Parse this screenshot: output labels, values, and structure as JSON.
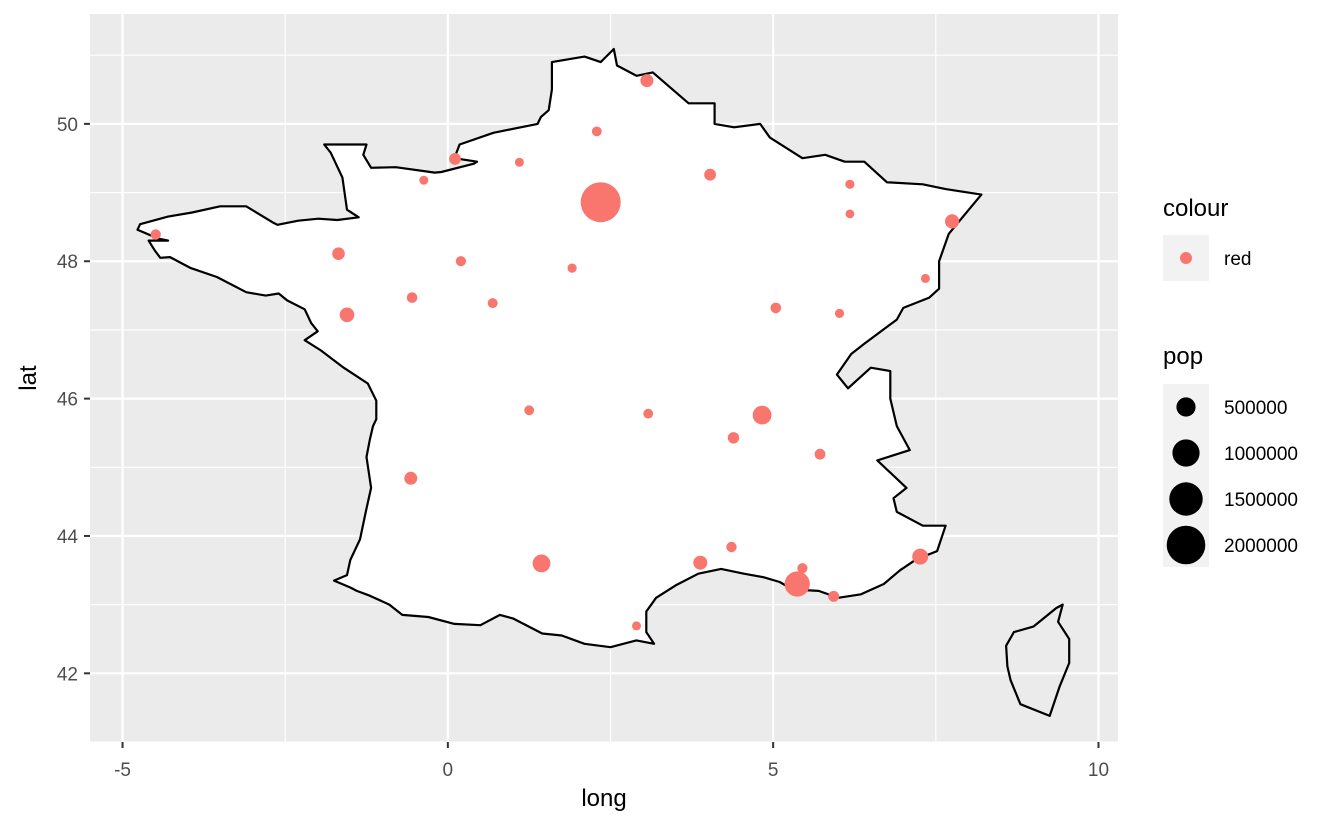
{
  "chart_data": {
    "type": "scatter",
    "subtype": "map",
    "xlabel": "long",
    "ylabel": "lat",
    "xlim": [
      -5.5,
      10.3
    ],
    "ylim": [
      41.0,
      51.6
    ],
    "x_ticks": [
      -5,
      0,
      5,
      10
    ],
    "y_ticks": [
      42,
      44,
      46,
      48,
      50
    ],
    "x_tick_labels": [
      "-5",
      "0",
      "5",
      "10"
    ],
    "y_tick_labels": [
      "42",
      "44",
      "46",
      "48",
      "50"
    ],
    "grid": true,
    "panel_background": "#EBEBEB",
    "country_fill": "#FFFFFF",
    "country_outline": "#000000",
    "point_color": "#F8766D",
    "legend_position": "right",
    "legend": {
      "colour": {
        "title": "colour",
        "items": [
          "red"
        ]
      },
      "size": {
        "title": "pop",
        "items": [
          "500000",
          "1000000",
          "1500000",
          "2000000"
        ],
        "values": [
          500000,
          1000000,
          1500000,
          2000000
        ]
      }
    },
    "points": [
      {
        "long": 2.35,
        "lat": 48.86,
        "pop": 2150000
      },
      {
        "long": 5.37,
        "lat": 43.3,
        "pop": 850000
      },
      {
        "long": 4.83,
        "lat": 45.76,
        "pop": 480000
      },
      {
        "long": 1.44,
        "lat": 43.6,
        "pop": 430000
      },
      {
        "long": 7.26,
        "lat": 43.7,
        "pop": 340000
      },
      {
        "long": -1.55,
        "lat": 47.22,
        "pop": 290000
      },
      {
        "long": 7.75,
        "lat": 48.58,
        "pop": 270000
      },
      {
        "long": 3.88,
        "lat": 43.61,
        "pop": 260000
      },
      {
        "long": -0.57,
        "lat": 44.84,
        "pop": 230000
      },
      {
        "long": 3.06,
        "lat": 50.63,
        "pop": 230000
      },
      {
        "long": -1.68,
        "lat": 48.11,
        "pop": 210000
      },
      {
        "long": 4.03,
        "lat": 49.26,
        "pop": 185000
      },
      {
        "long": 0.11,
        "lat": 49.49,
        "pop": 185000
      },
      {
        "long": 4.39,
        "lat": 45.43,
        "pop": 175000
      },
      {
        "long": 5.93,
        "lat": 43.12,
        "pop": 160000
      },
      {
        "long": 5.72,
        "lat": 45.19,
        "pop": 155000
      },
      {
        "long": 5.04,
        "lat": 47.32,
        "pop": 150000
      },
      {
        "long": -0.55,
        "lat": 47.47,
        "pop": 150000
      },
      {
        "long": -4.49,
        "lat": 48.39,
        "pop": 145000
      },
      {
        "long": 4.36,
        "lat": 43.84,
        "pop": 145000
      },
      {
        "long": 5.45,
        "lat": 43.53,
        "pop": 140000
      },
      {
        "long": 0.2,
        "lat": 48.0,
        "pop": 140000
      },
      {
        "long": 0.69,
        "lat": 47.39,
        "pop": 135000
      },
      {
        "long": 2.29,
        "lat": 49.89,
        "pop": 130000
      },
      {
        "long": 1.25,
        "lat": 45.83,
        "pop": 130000
      },
      {
        "long": 3.08,
        "lat": 45.78,
        "pop": 130000
      },
      {
        "long": 1.91,
        "lat": 47.9,
        "pop": 115000
      },
      {
        "long": 1.1,
        "lat": 49.44,
        "pop": 110000
      },
      {
        "long": 6.18,
        "lat": 49.12,
        "pop": 115000
      },
      {
        "long": 6.02,
        "lat": 47.24,
        "pop": 115000
      },
      {
        "long": -0.37,
        "lat": 49.18,
        "pop": 110000
      },
      {
        "long": 2.9,
        "lat": 42.69,
        "pop": 110000
      },
      {
        "long": 7.34,
        "lat": 47.75,
        "pop": 110000
      },
      {
        "long": 6.18,
        "lat": 48.69,
        "pop": 105000
      }
    ],
    "outlines": {
      "mainland": [
        [
          2.55,
          51.09
        ],
        [
          2.35,
          50.9
        ],
        [
          2.1,
          50.98
        ],
        [
          1.6,
          50.9
        ],
        [
          1.6,
          50.5
        ],
        [
          1.55,
          50.2
        ],
        [
          1.43,
          50.1
        ],
        [
          1.38,
          50.0
        ],
        [
          0.7,
          49.87
        ],
        [
          0.18,
          49.7
        ],
        [
          0.1,
          49.5
        ],
        [
          0.45,
          49.45
        ],
        [
          0.4,
          49.42
        ],
        [
          -0.1,
          49.3
        ],
        [
          -0.2,
          49.29
        ],
        [
          -0.8,
          49.37
        ],
        [
          -1.18,
          49.36
        ],
        [
          -1.3,
          49.55
        ],
        [
          -1.25,
          49.7
        ],
        [
          -1.9,
          49.7
        ],
        [
          -1.8,
          49.58
        ],
        [
          -1.62,
          49.22
        ],
        [
          -1.55,
          48.75
        ],
        [
          -1.37,
          48.64
        ],
        [
          -1.7,
          48.6
        ],
        [
          -1.99,
          48.62
        ],
        [
          -2.3,
          48.59
        ],
        [
          -2.62,
          48.53
        ],
        [
          -2.7,
          48.57
        ],
        [
          -3.1,
          48.8
        ],
        [
          -3.5,
          48.8
        ],
        [
          -3.93,
          48.71
        ],
        [
          -4.3,
          48.65
        ],
        [
          -4.73,
          48.54
        ],
        [
          -4.77,
          48.46
        ],
        [
          -4.45,
          48.33
        ],
        [
          -4.3,
          48.3
        ],
        [
          -4.6,
          48.3
        ],
        [
          -4.5,
          48.15
        ],
        [
          -4.42,
          48.05
        ],
        [
          -4.27,
          48.06
        ],
        [
          -3.95,
          47.9
        ],
        [
          -3.55,
          47.77
        ],
        [
          -3.1,
          47.55
        ],
        [
          -2.8,
          47.5
        ],
        [
          -2.6,
          47.53
        ],
        [
          -2.47,
          47.43
        ],
        [
          -2.2,
          47.3
        ],
        [
          -2.1,
          47.1
        ],
        [
          -2.0,
          46.98
        ],
        [
          -2.2,
          46.85
        ],
        [
          -1.95,
          46.7
        ],
        [
          -1.6,
          46.45
        ],
        [
          -1.23,
          46.22
        ],
        [
          -1.1,
          45.97
        ],
        [
          -1.1,
          45.7
        ],
        [
          -1.15,
          45.6
        ],
        [
          -1.2,
          45.4
        ],
        [
          -1.25,
          45.15
        ],
        [
          -1.18,
          44.7
        ],
        [
          -1.25,
          44.4
        ],
        [
          -1.35,
          43.95
        ],
        [
          -1.5,
          43.65
        ],
        [
          -1.55,
          43.43
        ],
        [
          -1.75,
          43.35
        ],
        [
          -1.5,
          43.25
        ],
        [
          -1.4,
          43.2
        ],
        [
          -1.2,
          43.13
        ],
        [
          -0.9,
          43.0
        ],
        [
          -0.7,
          42.85
        ],
        [
          -0.3,
          42.82
        ],
        [
          0.1,
          42.72
        ],
        [
          0.5,
          42.7
        ],
        [
          0.8,
          42.85
        ],
        [
          1.0,
          42.8
        ],
        [
          1.45,
          42.58
        ],
        [
          1.75,
          42.55
        ],
        [
          2.1,
          42.43
        ],
        [
          2.5,
          42.38
        ],
        [
          2.9,
          42.48
        ],
        [
          3.17,
          42.43
        ],
        [
          3.05,
          42.6
        ],
        [
          3.05,
          42.9
        ],
        [
          3.2,
          43.1
        ],
        [
          3.5,
          43.28
        ],
        [
          3.85,
          43.45
        ],
        [
          4.2,
          43.52
        ],
        [
          4.55,
          43.45
        ],
        [
          4.85,
          43.4
        ],
        [
          5.1,
          43.33
        ],
        [
          5.3,
          43.22
        ],
        [
          5.7,
          43.2
        ],
        [
          6.0,
          43.1
        ],
        [
          6.35,
          43.15
        ],
        [
          6.7,
          43.3
        ],
        [
          6.95,
          43.5
        ],
        [
          7.2,
          43.66
        ],
        [
          7.52,
          43.78
        ],
        [
          7.65,
          44.15
        ],
        [
          7.3,
          44.15
        ],
        [
          6.9,
          44.35
        ],
        [
          6.85,
          44.55
        ],
        [
          7.05,
          44.7
        ],
        [
          6.6,
          45.1
        ],
        [
          7.1,
          45.25
        ],
        [
          6.9,
          45.6
        ],
        [
          6.8,
          46.0
        ],
        [
          6.8,
          46.4
        ],
        [
          6.5,
          46.45
        ],
        [
          6.15,
          46.15
        ],
        [
          5.98,
          46.35
        ],
        [
          6.2,
          46.65
        ],
        [
          6.4,
          46.8
        ],
        [
          6.9,
          47.15
        ],
        [
          7.0,
          47.32
        ],
        [
          7.4,
          47.47
        ],
        [
          7.55,
          47.6
        ],
        [
          7.55,
          48.0
        ],
        [
          7.7,
          48.4
        ],
        [
          8.05,
          48.8
        ],
        [
          8.2,
          48.97
        ],
        [
          7.65,
          49.05
        ],
        [
          7.3,
          49.12
        ],
        [
          6.75,
          49.15
        ],
        [
          6.4,
          49.45
        ],
        [
          6.1,
          49.45
        ],
        [
          5.8,
          49.55
        ],
        [
          5.45,
          49.5
        ],
        [
          4.95,
          49.8
        ],
        [
          4.8,
          50.0
        ],
        [
          4.4,
          49.95
        ],
        [
          4.1,
          50.0
        ],
        [
          4.1,
          50.3
        ],
        [
          3.7,
          50.3
        ],
        [
          3.15,
          50.75
        ],
        [
          2.9,
          50.7
        ],
        [
          2.6,
          50.85
        ],
        [
          2.55,
          51.09
        ]
      ],
      "corsica": [
        [
          9.45,
          43.0
        ],
        [
          9.38,
          42.75
        ],
        [
          9.55,
          42.5
        ],
        [
          9.55,
          42.15
        ],
        [
          9.4,
          41.8
        ],
        [
          9.25,
          41.38
        ],
        [
          8.8,
          41.55
        ],
        [
          8.65,
          41.9
        ],
        [
          8.6,
          42.1
        ],
        [
          8.58,
          42.4
        ],
        [
          8.7,
          42.6
        ],
        [
          9.0,
          42.68
        ],
        [
          9.35,
          42.95
        ],
        [
          9.45,
          43.0
        ]
      ]
    }
  }
}
